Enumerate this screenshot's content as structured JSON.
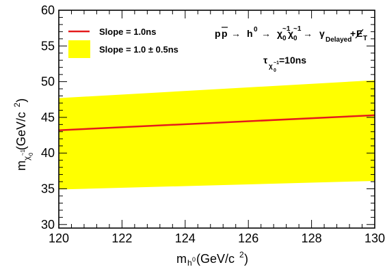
{
  "chart_data": {
    "type": "area",
    "x_range": [
      120,
      130
    ],
    "ylim": [
      29.5,
      60
    ],
    "x_ticks": [
      120,
      122,
      124,
      126,
      128,
      130
    ],
    "y_ticks": [
      30,
      35,
      40,
      45,
      50,
      55,
      60
    ],
    "x_tick_labels": [
      "120",
      "122",
      "124",
      "126",
      "128",
      "130"
    ],
    "y_tick_labels": [
      "30",
      "35",
      "40",
      "45",
      "50",
      "55",
      "60"
    ],
    "xlabel": {
      "main": "m",
      "sub": "h",
      "sup": "0",
      "units": "(GeV/c",
      "units_sup": "2",
      "units_end": ")"
    },
    "ylabel": {
      "main": "m",
      "sub_sym": "χ",
      "sub_sub": "0",
      "sub_sup": "~1",
      "units": "(GeV/c",
      "units_sup": "2",
      "units_end": ")"
    },
    "grid": false,
    "legend_position": "top-left",
    "series": [
      {
        "name": "Slope = 1.0ns",
        "kind": "line",
        "color": "#e41a1c",
        "x": [
          120,
          130
        ],
        "y": [
          43.2,
          45.3
        ]
      },
      {
        "name": "Slope = 1.0 ± 0.5ns",
        "kind": "band",
        "color": "#ffff00",
        "x": [
          120,
          130
        ],
        "y_low": [
          34.9,
          36.1
        ],
        "y_high": [
          47.7,
          50.2
        ]
      }
    ],
    "annotations": {
      "process": {
        "p1": "p",
        "pbar": "p",
        "arrow1": "→",
        "h": "h",
        "h_sup": "0",
        "arrow2": "→",
        "chi_a": "χ",
        "chi_a_sup": "~1",
        "chi_a_sub": "0",
        "chi_b": "χ",
        "chi_b_sup": "~1",
        "chi_b_sub": "0",
        "arrow3": "→",
        "gamma": "γ",
        "gamma_sub": "Delayed",
        "plus": "+",
        "et": "E",
        "et_sub": "T"
      },
      "lifetime": {
        "tau": "τ",
        "tau_sub_sym": "χ",
        "tau_sub_sub": "0",
        "tau_sub_sup": "~1",
        "value": "=10ns"
      }
    }
  }
}
